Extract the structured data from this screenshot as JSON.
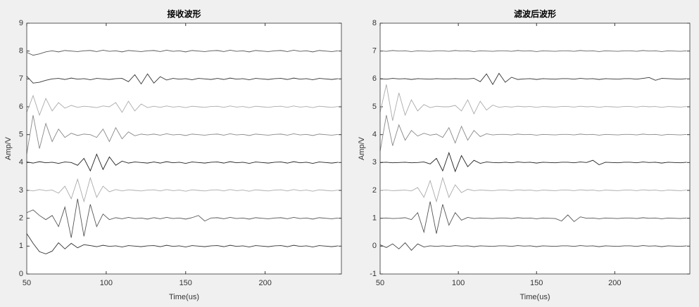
{
  "chart_data": [
    {
      "type": "line",
      "title": "接收波形",
      "xlabel": "Time(us)",
      "ylabel": "Amp/V",
      "xlim": [
        50,
        248
      ],
      "xticks": [
        50,
        100,
        150,
        200
      ],
      "ylim": [
        0,
        9
      ],
      "yticks": [
        0,
        1,
        2,
        3,
        4,
        5,
        6,
        7,
        8,
        9
      ],
      "x": [
        50,
        54,
        58,
        62,
        66,
        70,
        74,
        78,
        82,
        86,
        90,
        94,
        98,
        102,
        106,
        110,
        114,
        118,
        122,
        126,
        130,
        134,
        138,
        142,
        146,
        150,
        154,
        158,
        162,
        166,
        170,
        174,
        178,
        182,
        186,
        190,
        194,
        198,
        202,
        206,
        210,
        214,
        218,
        222,
        226,
        230,
        234,
        238,
        242,
        246
      ],
      "series": [
        {
          "color": "#333333",
          "values": [
            1.45,
            1.1,
            0.8,
            0.72,
            0.82,
            1.12,
            0.9,
            1.1,
            0.94,
            1.05,
            1.02,
            0.98,
            1.03,
            0.99,
            1.01,
            0.97,
            1.02,
            1,
            0.98,
            1.01,
            1.02,
            0.98,
            1.03,
            0.99,
            1.01,
            0.97,
            1.02,
            1,
            0.98,
            1.01,
            1.02,
            0.98,
            1.03,
            0.99,
            1.01,
            0.97,
            1.02,
            1,
            0.98,
            1.01,
            1.02,
            0.98,
            1.03,
            0.99,
            1.01,
            0.97,
            1.02,
            1,
            0.98,
            1.01
          ]
        },
        {
          "color": "#555555",
          "values": [
            2.2,
            2.3,
            2.1,
            1.95,
            2.1,
            1.7,
            2.4,
            1.3,
            2.7,
            1.35,
            2.5,
            1.7,
            2.15,
            1.95,
            2.02,
            1.98,
            2.03,
            1.99,
            2.01,
            1.97,
            2.02,
            1.98,
            2.03,
            1.99,
            2.01,
            1.97,
            2.02,
            2.1,
            1.9,
            2.01,
            2.02,
            1.98,
            2.03,
            1.99,
            2.01,
            1.97,
            2.02,
            2,
            1.98,
            2.01,
            2.02,
            1.98,
            2.03,
            1.99,
            2.01,
            1.97,
            2.02,
            2,
            1.98,
            2.01
          ]
        },
        {
          "color": "#aaaaaa",
          "values": [
            3.02,
            2.98,
            3.03,
            2.99,
            3.01,
            2.9,
            3.15,
            2.7,
            3.4,
            2.6,
            3.45,
            2.75,
            3.15,
            2.95,
            3.03,
            2.98,
            3.02,
            3,
            2.98,
            3.01,
            3.02,
            2.98,
            3.03,
            2.99,
            3.01,
            2.97,
            3.02,
            3,
            2.98,
            3.01,
            3.02,
            2.98,
            3.03,
            2.99,
            3.01,
            2.97,
            3.02,
            3,
            2.98,
            3.01,
            3.02,
            2.98,
            3.03,
            2.99,
            3.01,
            2.97,
            3.02,
            3,
            2.98,
            3.01
          ]
        },
        {
          "color": "#222222",
          "values": [
            4.02,
            3.98,
            4.03,
            3.99,
            4.01,
            3.97,
            4.02,
            4,
            3.9,
            4.15,
            3.7,
            4.3,
            3.75,
            4.2,
            3.9,
            4.05,
            3.98,
            4.02,
            4,
            3.98,
            4.02,
            3.98,
            4.03,
            3.99,
            4.01,
            3.97,
            4.02,
            4,
            3.98,
            4.01,
            4.02,
            3.98,
            4.03,
            3.99,
            4.01,
            3.97,
            4.02,
            4,
            3.98,
            4.01,
            4.02,
            3.98,
            4.03,
            3.99,
            4.01,
            3.97,
            4.02,
            4,
            3.98,
            4.01
          ]
        },
        {
          "color": "#888888",
          "values": [
            4.3,
            5.7,
            4.5,
            5.4,
            4.75,
            5.2,
            4.9,
            5.05,
            4.97,
            5.02,
            5,
            4.9,
            5.2,
            4.75,
            5.25,
            4.85,
            5.1,
            4.96,
            5.02,
            4.99,
            5.02,
            4.98,
            5.03,
            4.99,
            5.01,
            4.97,
            5.02,
            5,
            4.98,
            5.01,
            5.02,
            4.98,
            5.03,
            4.99,
            5.01,
            4.97,
            5.02,
            5,
            4.98,
            5.01,
            5.02,
            4.98,
            5.03,
            4.99,
            5.01,
            4.97,
            5.02,
            5,
            4.98,
            5.01
          ]
        },
        {
          "color": "#aaaaaa",
          "values": [
            5.8,
            6.4,
            5.7,
            6.3,
            5.85,
            6.15,
            5.95,
            6.05,
            5.98,
            6.02,
            6,
            5.97,
            6.03,
            6,
            6.15,
            5.8,
            6.2,
            5.85,
            6.1,
            5.97,
            6.02,
            5.98,
            6.03,
            5.99,
            6.01,
            5.97,
            6.02,
            6,
            5.98,
            6.01,
            6.02,
            5.98,
            6.03,
            5.99,
            6.01,
            5.97,
            6.02,
            6,
            5.98,
            6.01,
            6.02,
            5.98,
            6.03,
            5.99,
            6.01,
            5.97,
            6.02,
            6,
            5.98,
            6.01
          ]
        },
        {
          "color": "#333333",
          "values": [
            7.1,
            6.85,
            6.88,
            6.95,
            7,
            7.02,
            6.98,
            7.03,
            6.99,
            7.01,
            6.97,
            7.02,
            7,
            6.98,
            7.01,
            7.02,
            6.9,
            7.15,
            6.82,
            7.18,
            6.85,
            7.08,
            6.96,
            7.02,
            6.99,
            7.01,
            6.97,
            7.02,
            7,
            6.98,
            7.02,
            6.98,
            7.03,
            6.99,
            7.01,
            6.97,
            7.02,
            7,
            6.98,
            7.01,
            7.02,
            6.98,
            7.03,
            6.99,
            7.01,
            6.97,
            7.02,
            7,
            6.98,
            7.01
          ]
        },
        {
          "color": "#555555",
          "values": [
            7.95,
            7.85,
            7.9,
            7.97,
            8.01,
            7.97,
            8.02,
            8,
            7.98,
            8.01,
            8.02,
            7.98,
            8.03,
            7.99,
            8.01,
            7.97,
            8.02,
            8,
            7.98,
            8.01,
            8.02,
            7.98,
            8.03,
            7.99,
            8.01,
            7.97,
            8.02,
            8,
            7.98,
            8.01,
            8.02,
            7.98,
            8.03,
            7.99,
            8.01,
            7.97,
            8.02,
            8,
            7.98,
            8.01,
            8.02,
            7.98,
            8.03,
            7.99,
            8.01,
            7.97,
            8.02,
            8,
            7.98,
            8.01
          ]
        }
      ]
    },
    {
      "type": "line",
      "title": "滤波后波形",
      "xlabel": "Time(us)",
      "ylabel": "Amp/V",
      "xlim": [
        50,
        248
      ],
      "xticks": [
        50,
        100,
        150,
        200
      ],
      "ylim": [
        -1,
        8
      ],
      "yticks": [
        -1,
        0,
        1,
        2,
        3,
        4,
        5,
        6,
        7,
        8
      ],
      "x": [
        50,
        54,
        58,
        62,
        66,
        70,
        74,
        78,
        82,
        86,
        90,
        94,
        98,
        102,
        106,
        110,
        114,
        118,
        122,
        126,
        130,
        134,
        138,
        142,
        146,
        150,
        154,
        158,
        162,
        166,
        170,
        174,
        178,
        182,
        186,
        190,
        194,
        198,
        202,
        206,
        210,
        214,
        218,
        222,
        226,
        230,
        234,
        238,
        242,
        246
      ],
      "series": [
        {
          "color": "#444444",
          "values": [
            0.05,
            -0.05,
            0.08,
            -0.1,
            0.12,
            -0.15,
            0.08,
            -0.03,
            0.01,
            -0.01,
            0.01,
            -0.01,
            0.02,
            0,
            0.01,
            -0.02,
            0.01,
            0,
            -0.01,
            0.01,
            0.01,
            -0.01,
            0.02,
            0,
            0.01,
            -0.02,
            0.01,
            0,
            -0.01,
            0.01,
            0.01,
            -0.01,
            0.02,
            0,
            0.01,
            -0.02,
            0.01,
            0,
            -0.01,
            0.01,
            0.01,
            -0.01,
            0.02,
            0,
            0.01,
            -0.02,
            0.01,
            0,
            -0.01,
            0.01
          ]
        },
        {
          "color": "#555555",
          "values": [
            1,
            1.01,
            0.99,
            1,
            1.02,
            0.95,
            1.2,
            0.5,
            1.6,
            0.45,
            1.5,
            0.75,
            1.2,
            0.93,
            1.03,
            0.99,
            1.01,
            1,
            0.99,
            1.01,
            1.01,
            0.99,
            1.02,
            1,
            1.01,
            0.98,
            1.01,
            1,
            0.99,
            0.9,
            1.12,
            0.88,
            1.05,
            1,
            1.01,
            0.98,
            1.01,
            1,
            0.99,
            1.01,
            1.01,
            0.99,
            1.02,
            1,
            1.01,
            0.98,
            1.01,
            1,
            0.99,
            1.01
          ]
        },
        {
          "color": "#aaaaaa",
          "values": [
            2,
            2.01,
            1.99,
            2,
            2.01,
            1.98,
            2.1,
            1.75,
            2.35,
            1.6,
            2.45,
            1.75,
            2.2,
            1.92,
            2.04,
            1.99,
            2.01,
            2,
            1.99,
            2.01,
            2.01,
            1.99,
            2.02,
            2,
            2.01,
            1.98,
            2.01,
            2,
            1.99,
            2.01,
            2.01,
            1.99,
            2.02,
            2,
            2.01,
            1.98,
            2.01,
            2,
            1.99,
            2.01,
            2.01,
            1.99,
            2.02,
            2,
            2.01,
            1.98,
            2.01,
            2,
            1.99,
            2.01
          ]
        },
        {
          "color": "#222222",
          "values": [
            3,
            3.01,
            2.99,
            3,
            3.01,
            2.99,
            3,
            3.02,
            2.95,
            3.15,
            2.7,
            3.35,
            2.68,
            3.25,
            2.85,
            3.08,
            2.97,
            3.02,
            3,
            2.99,
            3.01,
            2.99,
            3.02,
            3,
            3.01,
            2.98,
            3.01,
            3,
            2.99,
            3.01,
            3.01,
            2.99,
            3.02,
            3,
            3.08,
            2.92,
            3.01,
            3,
            2.99,
            3.01,
            3.01,
            2.99,
            3.02,
            3,
            3.01,
            2.98,
            3.01,
            3,
            2.99,
            3.01
          ]
        },
        {
          "color": "#888888",
          "values": [
            3.4,
            4.7,
            3.6,
            4.35,
            3.8,
            4.15,
            3.95,
            4.05,
            3.98,
            4.02,
            3.9,
            4.25,
            3.7,
            4.3,
            3.8,
            4.15,
            3.93,
            4.03,
            3.99,
            4.01,
            4.01,
            3.99,
            4.02,
            4,
            4.01,
            3.98,
            4.01,
            4,
            3.99,
            4.01,
            4.01,
            3.99,
            4.02,
            4,
            4.01,
            3.98,
            4.01,
            4,
            3.99,
            4.01,
            4.01,
            3.99,
            4.02,
            4,
            4.01,
            3.98,
            4.01,
            4,
            3.99,
            4.01
          ]
        },
        {
          "color": "#aaaaaa",
          "values": [
            4.8,
            5.8,
            4.5,
            5.5,
            4.7,
            5.25,
            4.85,
            5.08,
            4.97,
            5.02,
            5,
            5,
            5.05,
            4.85,
            5.25,
            4.75,
            5.2,
            4.88,
            5.06,
            4.98,
            5.01,
            4.99,
            5.02,
            5,
            5.01,
            4.98,
            5.01,
            5,
            4.99,
            5.01,
            5.01,
            4.99,
            5.02,
            5,
            5.01,
            4.98,
            5.01,
            5,
            4.99,
            5.01,
            5.01,
            4.99,
            5.02,
            5,
            5.01,
            4.98,
            5.01,
            5,
            4.99,
            5.01
          ]
        },
        {
          "color": "#333333",
          "values": [
            6.01,
            5.99,
            6.02,
            6,
            6.01,
            5.98,
            6.01,
            6,
            5.99,
            6.01,
            6,
            6,
            6.01,
            6,
            6,
            6.02,
            5.9,
            6.18,
            5.8,
            6.2,
            5.88,
            6.06,
            5.98,
            6,
            6.01,
            5.98,
            6.01,
            6,
            5.99,
            6.01,
            6.01,
            5.99,
            6.02,
            6,
            6.01,
            5.98,
            6.01,
            6,
            5.99,
            6.01,
            6.01,
            5.99,
            6.02,
            6.05,
            5.95,
            6.02,
            6.01,
            6,
            5.99,
            6.01
          ]
        },
        {
          "color": "#666666",
          "values": [
            7.01,
            6.99,
            7.02,
            7,
            7.01,
            6.98,
            7.01,
            7,
            6.99,
            7.01,
            7.01,
            6.99,
            7.02,
            7,
            7.01,
            6.98,
            7.01,
            7,
            6.99,
            7.01,
            7.01,
            6.99,
            7.02,
            7,
            7.01,
            6.98,
            7.01,
            7,
            6.99,
            7.01,
            7.01,
            6.99,
            7.02,
            7,
            7.01,
            6.98,
            7.01,
            7,
            6.99,
            7.01,
            7.01,
            6.99,
            7.02,
            7,
            7.01,
            6.98,
            7.01,
            7,
            6.99,
            7.01
          ]
        }
      ]
    }
  ]
}
